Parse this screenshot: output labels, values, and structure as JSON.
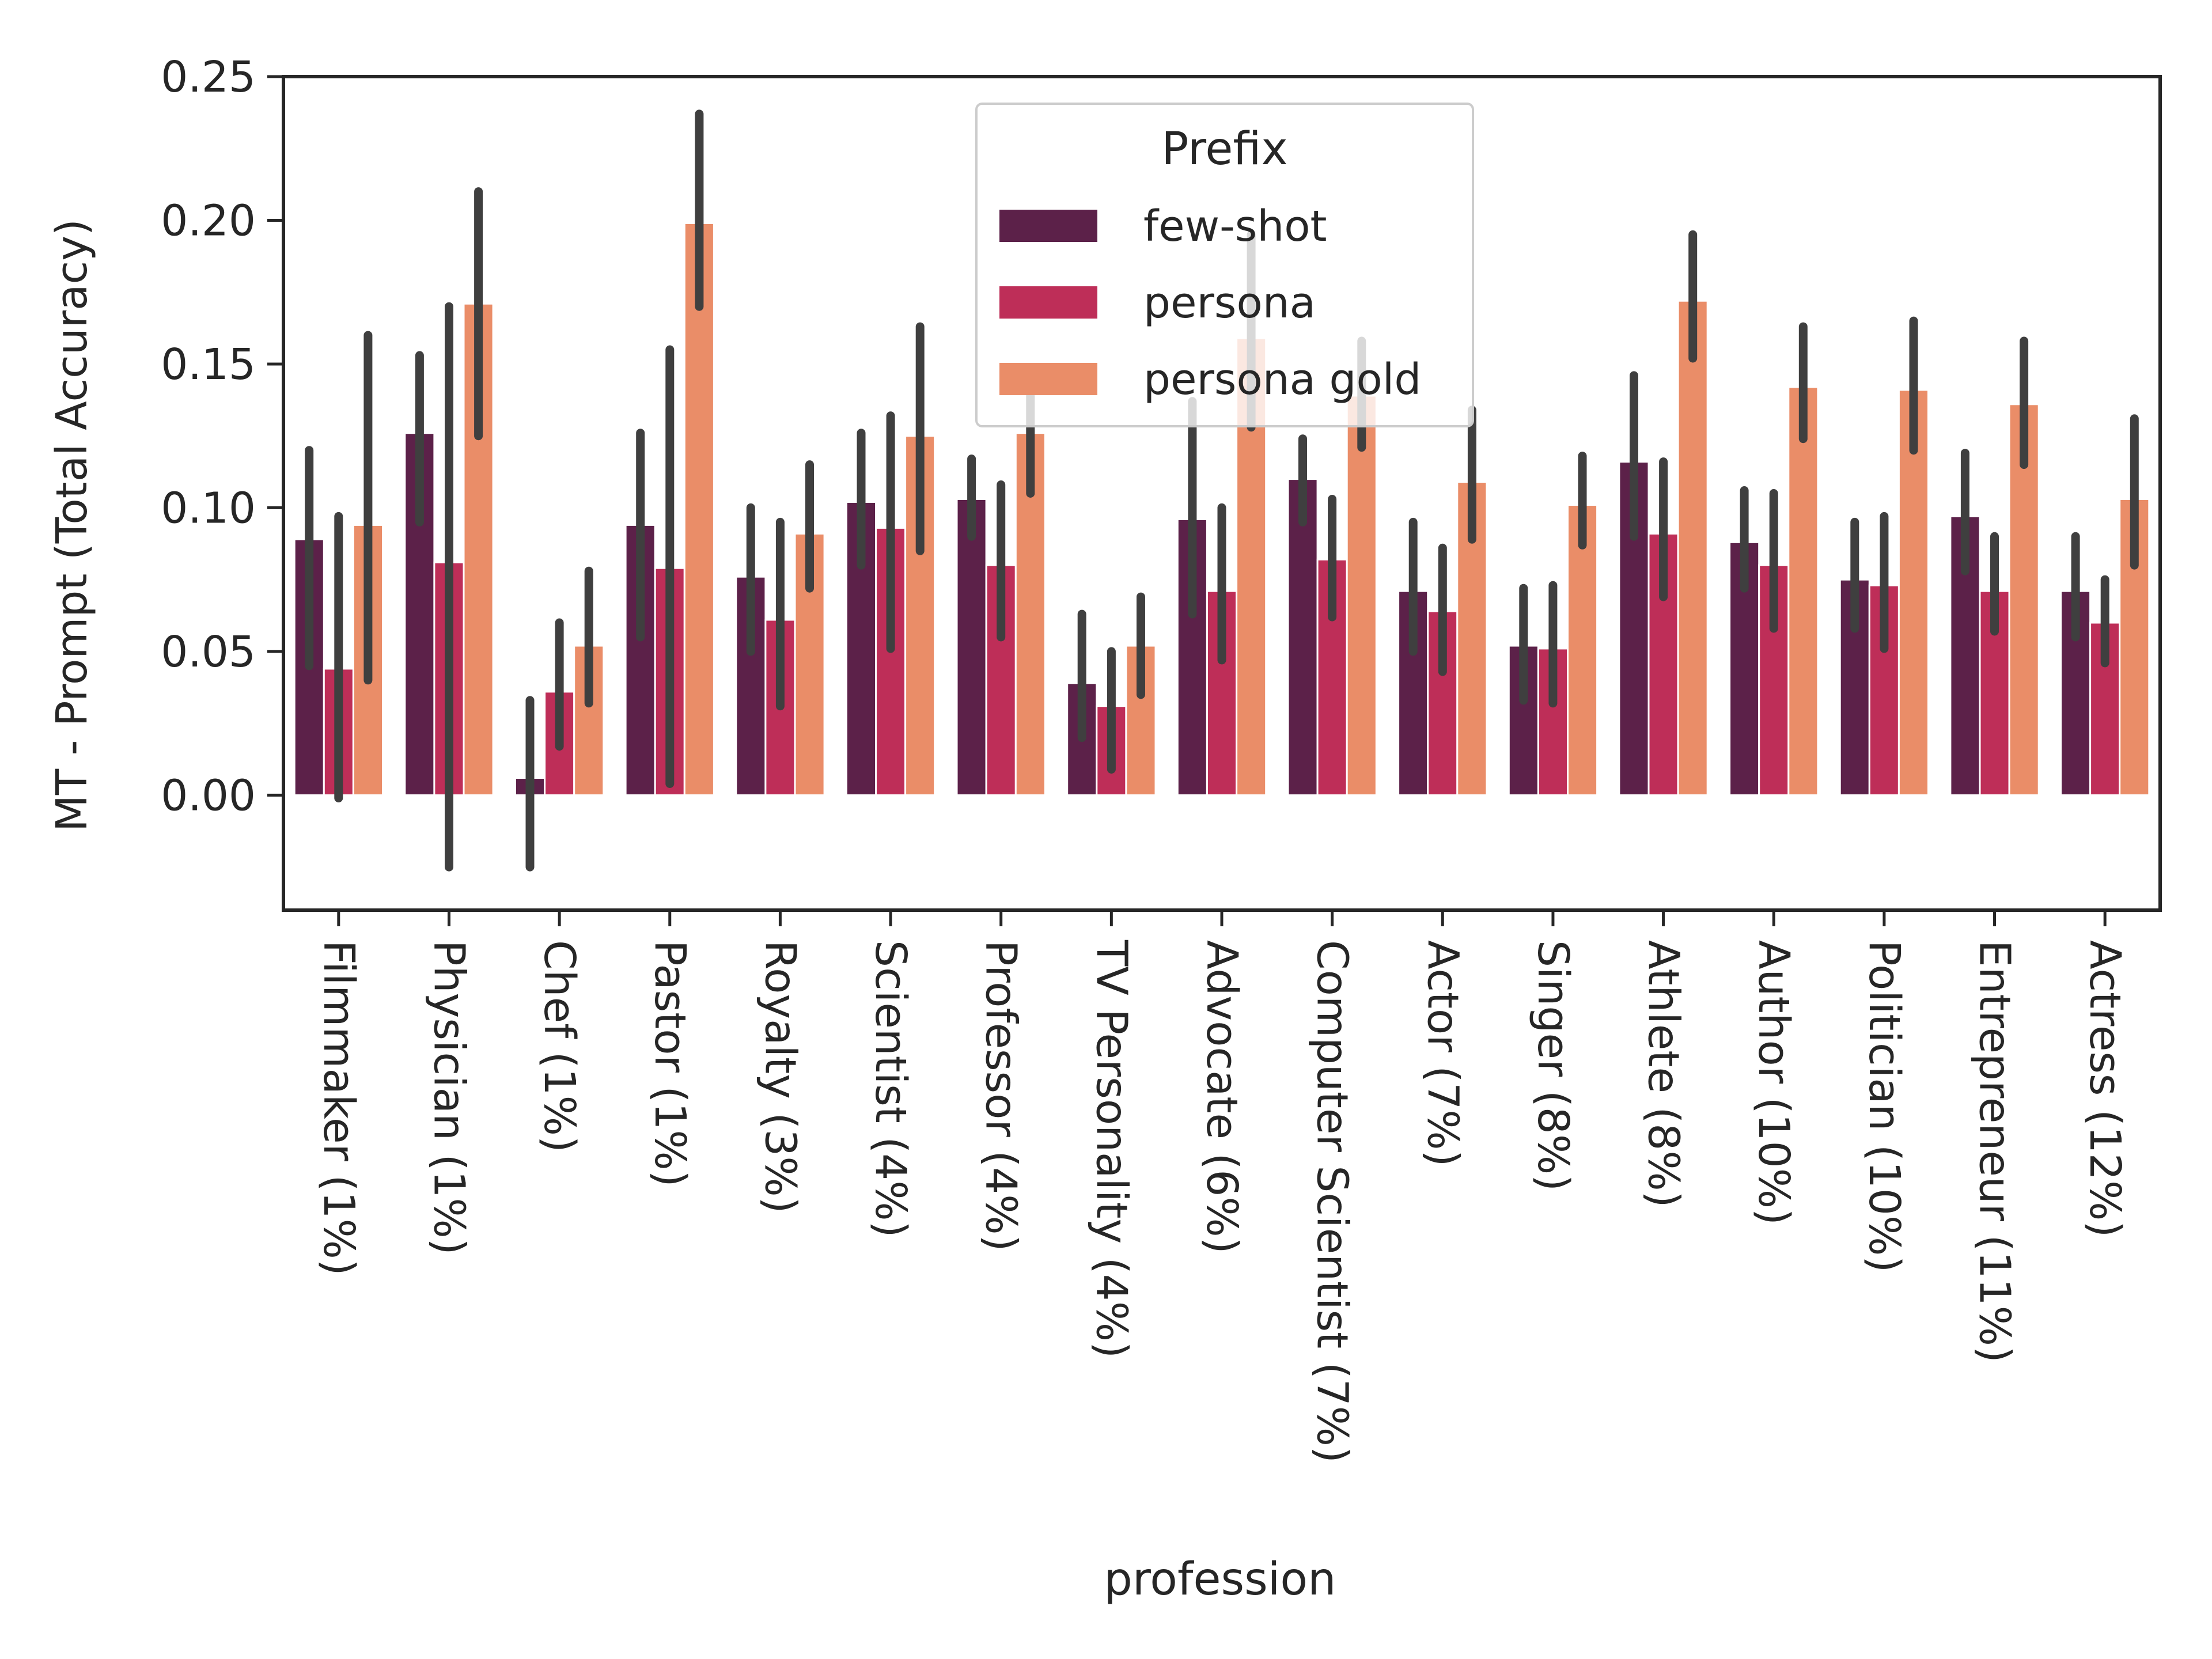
{
  "chart_data": {
    "type": "bar",
    "title": "",
    "xlabel": "profession",
    "ylabel": "MT - Prompt (Total Accuracy)",
    "ylim": [
      -0.04,
      0.25
    ],
    "yticks": [
      "0.00",
      "0.05",
      "0.10",
      "0.15",
      "0.20",
      "0.25"
    ],
    "ytick_values": [
      0.0,
      0.05,
      0.1,
      0.15,
      0.2,
      0.25
    ],
    "legend": {
      "title": "Prefix",
      "placement": "top-center"
    },
    "categories": [
      "Filmmaker (1%)",
      "Physician (1%)",
      "Chef (1%)",
      "Pastor (1%)",
      "Royalty (3%)",
      "Scientist (4%)",
      "Professor (4%)",
      "TV Personality (4%)",
      "Advocate (6%)",
      "Computer Scientist (7%)",
      "Actor (7%)",
      "Singer (8%)",
      "Athlete (8%)",
      "Author (10%)",
      "Politician (10%)",
      "Entrepreneur (11%)",
      "Actress (12%)"
    ],
    "series": [
      {
        "name": "few-shot",
        "color": "#5c2149",
        "values": [
          0.089,
          0.126,
          0.006,
          0.094,
          0.076,
          0.102,
          0.103,
          0.039,
          0.096,
          0.11,
          0.071,
          0.052,
          0.116,
          0.088,
          0.075,
          0.097,
          0.071
        ],
        "ci_low": [
          0.045,
          0.095,
          -0.025,
          0.055,
          0.05,
          0.08,
          0.09,
          0.02,
          0.063,
          0.095,
          0.05,
          0.033,
          0.09,
          0.072,
          0.058,
          0.078,
          0.055
        ],
        "ci_high": [
          0.12,
          0.153,
          0.033,
          0.126,
          0.1,
          0.126,
          0.117,
          0.063,
          0.137,
          0.124,
          0.095,
          0.072,
          0.146,
          0.106,
          0.095,
          0.119,
          0.09
        ]
      },
      {
        "name": "persona",
        "color": "#be2e58",
        "values": [
          0.044,
          0.081,
          0.036,
          0.079,
          0.061,
          0.093,
          0.08,
          0.031,
          0.071,
          0.082,
          0.064,
          0.051,
          0.091,
          0.08,
          0.073,
          0.071,
          0.06
        ],
        "ci_low": [
          -0.001,
          -0.025,
          0.017,
          0.004,
          0.031,
          0.051,
          0.055,
          0.009,
          0.047,
          0.062,
          0.043,
          0.032,
          0.069,
          0.058,
          0.051,
          0.057,
          0.046
        ],
        "ci_high": [
          0.097,
          0.17,
          0.06,
          0.155,
          0.095,
          0.132,
          0.108,
          0.05,
          0.1,
          0.103,
          0.086,
          0.073,
          0.116,
          0.105,
          0.097,
          0.09,
          0.075
        ]
      },
      {
        "name": "persona gold",
        "color": "#ea8d68",
        "values": [
          0.094,
          0.171,
          0.052,
          0.199,
          0.091,
          0.125,
          0.126,
          0.052,
          0.159,
          0.139,
          0.109,
          0.101,
          0.172,
          0.142,
          0.141,
          0.136,
          0.103
        ],
        "ci_low": [
          0.04,
          0.125,
          0.032,
          0.17,
          0.072,
          0.085,
          0.105,
          0.035,
          0.128,
          0.121,
          0.089,
          0.087,
          0.152,
          0.124,
          0.12,
          0.115,
          0.08
        ],
        "ci_high": [
          0.16,
          0.21,
          0.078,
          0.237,
          0.115,
          0.163,
          0.146,
          0.069,
          0.195,
          0.158,
          0.134,
          0.118,
          0.195,
          0.163,
          0.165,
          0.158,
          0.131
        ]
      }
    ]
  }
}
